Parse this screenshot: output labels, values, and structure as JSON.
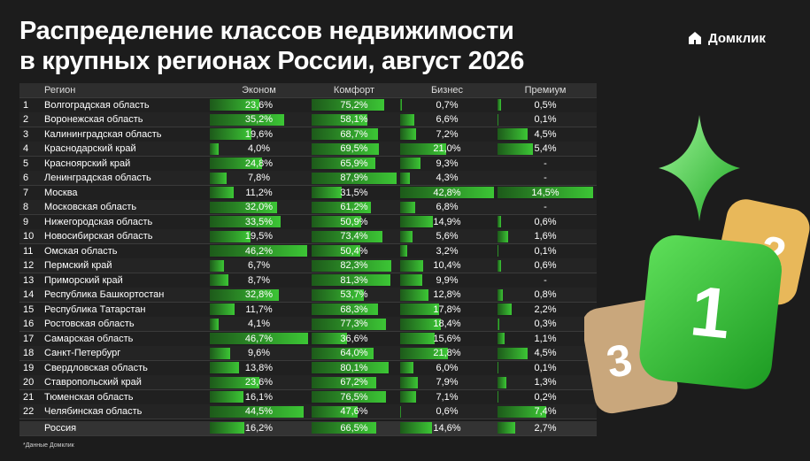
{
  "header": {
    "title_lines": [
      "Распределение классов недвижимости",
      "в крупных регионах России, август 2026"
    ],
    "logo": "Домклик"
  },
  "table": {
    "columns": [
      "Регион",
      "Эконом",
      "Комфорт",
      "Бизнес",
      "Премиум"
    ],
    "rows": [
      [
        "1",
        "Волгоградская область",
        "23,6%",
        "75,2%",
        "0,7%",
        "0,5%"
      ],
      [
        "2",
        "Воронежская область",
        "35,2%",
        "58,1%",
        "6,6%",
        "0,1%"
      ],
      [
        "3",
        "Калининградская область",
        "19,6%",
        "68,7%",
        "7,2%",
        "4,5%"
      ],
      [
        "4",
        "Краснодарский край",
        "4,0%",
        "69,5%",
        "21,0%",
        "5,4%"
      ],
      [
        "5",
        "Красноярский край",
        "24,8%",
        "65,9%",
        "9,3%",
        "-"
      ],
      [
        "6",
        "Ленинградская область",
        "7,8%",
        "87,9%",
        "4,3%",
        "-"
      ],
      [
        "7",
        "Москва",
        "11,2%",
        "31,5%",
        "42,8%",
        "14,5%"
      ],
      [
        "8",
        "Московская область",
        "32,0%",
        "61,2%",
        "6,8%",
        "-"
      ],
      [
        "9",
        "Нижегородская область",
        "33,5%",
        "50,9%",
        "14,9%",
        "0,6%"
      ],
      [
        "10",
        "Новосибирская область",
        "19,5%",
        "73,4%",
        "5,6%",
        "1,6%"
      ],
      [
        "11",
        "Омская область",
        "46,2%",
        "50,4%",
        "3,2%",
        "0,1%"
      ],
      [
        "12",
        "Пермский край",
        "6,7%",
        "82,3%",
        "10,4%",
        "0,6%"
      ],
      [
        "13",
        "Приморский край",
        "8,7%",
        "81,3%",
        "9,9%",
        "-"
      ],
      [
        "14",
        "Республика Башкортостан",
        "32,8%",
        "53,7%",
        "12,8%",
        "0,8%"
      ],
      [
        "15",
        "Республика Татарстан",
        "11,7%",
        "68,3%",
        "17,8%",
        "2,2%"
      ],
      [
        "16",
        "Ростовская область",
        "4,1%",
        "77,3%",
        "18,4%",
        "0,3%"
      ],
      [
        "17",
        "Самарская область",
        "46,7%",
        "36,6%",
        "15,6%",
        "1,1%"
      ],
      [
        "18",
        "Санкт-Петербург",
        "9,6%",
        "64,0%",
        "21,8%",
        "4,5%"
      ],
      [
        "19",
        "Свердловская область",
        "13,8%",
        "80,1%",
        "6,0%",
        "0,1%"
      ],
      [
        "20",
        "Ставропольский край",
        "23,6%",
        "67,2%",
        "7,9%",
        "1,3%"
      ],
      [
        "21",
        "Тюменская область",
        "16,1%",
        "76,5%",
        "7,1%",
        "0,2%"
      ],
      [
        "22",
        "Челябинская область",
        "44,5%",
        "47,6%",
        "0,6%",
        "7,4%"
      ]
    ],
    "total": [
      "Россия",
      "16,2%",
      "66,5%",
      "14,6%",
      "2,7%"
    ]
  },
  "footnote": "*Данные Домклик",
  "decoration": {
    "tiles": [
      "1",
      "2",
      "3"
    ]
  }
}
